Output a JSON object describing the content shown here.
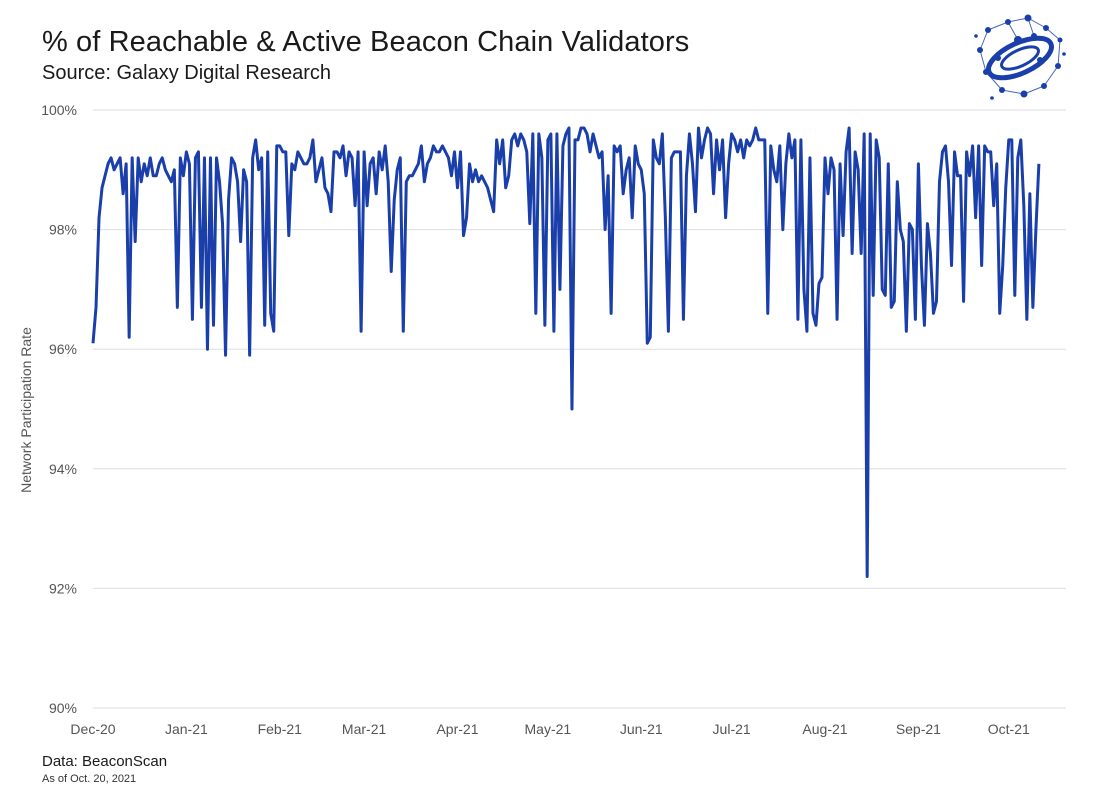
{
  "header": {
    "title": "% of Reachable & Active Beacon Chain Validators",
    "subtitle": "Source: Galaxy Digital Research"
  },
  "footer": {
    "source": "Data: BeaconScan",
    "as_of": "As of Oct. 20, 2021"
  },
  "logo": {
    "icon": "galaxy-logo-icon",
    "color": "#1a3faa"
  },
  "chart_data": {
    "type": "line",
    "title": "% of Reachable & Active Beacon Chain Validators",
    "xlabel": "",
    "ylabel": "Network Participation Rate",
    "ylim": [
      90,
      100
    ],
    "yticks": [
      90,
      92,
      94,
      96,
      98,
      100
    ],
    "ytick_labels": [
      "90%",
      "92%",
      "94%",
      "96%",
      "98%",
      "100%"
    ],
    "xlim": [
      "2020-12-01",
      "2021-10-20"
    ],
    "xticks": [
      "2020-12-01",
      "2021-01-01",
      "2021-02-01",
      "2021-03-01",
      "2021-04-01",
      "2021-05-01",
      "2021-06-01",
      "2021-07-01",
      "2021-08-01",
      "2021-09-01",
      "2021-10-01"
    ],
    "xtick_labels": [
      "Dec-20",
      "Jan-21",
      "Feb-21",
      "Mar-21",
      "Apr-21",
      "May-21",
      "Jun-21",
      "Jul-21",
      "Aug-21",
      "Sep-21",
      "Oct-21"
    ],
    "grid": true,
    "line_color": "#1a3faa",
    "series": [
      {
        "x_start": "2020-12-01",
        "x_step_days": 1,
        "values": [
          96.1,
          96.7,
          98.2,
          98.7,
          98.9,
          99.1,
          99.2,
          99.0,
          99.1,
          99.2,
          98.6,
          99.1,
          96.2,
          99.2,
          97.8,
          99.2,
          98.8,
          99.1,
          98.9,
          99.2,
          98.9,
          98.9,
          99.1,
          99.2,
          99.0,
          98.9,
          98.8,
          99.0,
          96.7,
          99.2,
          98.9,
          99.3,
          99.1,
          96.5,
          99.2,
          99.3,
          96.7,
          99.2,
          96.0,
          99.2,
          96.4,
          99.2,
          98.8,
          98.1,
          95.9,
          98.5,
          99.2,
          99.1,
          98.8,
          97.8,
          99.0,
          98.8,
          95.9,
          99.2,
          99.5,
          99.0,
          99.2,
          96.4,
          99.3,
          96.6,
          96.3,
          99.4,
          99.4,
          99.3,
          99.3,
          97.9,
          99.1,
          99.0,
          99.3,
          99.2,
          99.1,
          99.1,
          99.2,
          99.5,
          98.8,
          99.0,
          99.2,
          98.7,
          98.6,
          98.3,
          99.3,
          99.3,
          99.2,
          99.4,
          98.9,
          99.3,
          99.2,
          98.4,
          99.3,
          96.3,
          99.3,
          98.4,
          99.1,
          99.2,
          98.6,
          99.3,
          99.0,
          99.4,
          98.8,
          97.3,
          98.5,
          99.0,
          99.2,
          96.3,
          98.8,
          98.9,
          98.9,
          99.0,
          99.1,
          99.4,
          98.8,
          99.1,
          99.2,
          99.4,
          99.3,
          99.3,
          99.4,
          99.3,
          99.2,
          98.9,
          99.3,
          98.7,
          99.3,
          97.9,
          98.2,
          99.1,
          98.8,
          99.0,
          98.8,
          98.9,
          98.8,
          98.7,
          98.5,
          98.3,
          99.5,
          99.1,
          99.5,
          98.7,
          98.9,
          99.5,
          99.6,
          99.4,
          99.6,
          99.5,
          99.3,
          98.1,
          99.6,
          96.6,
          99.6,
          99.2,
          96.4,
          99.5,
          99.6,
          96.3,
          99.6,
          97.0,
          99.4,
          99.6,
          99.7,
          95.0,
          99.5,
          99.5,
          99.7,
          99.7,
          99.6,
          99.3,
          99.6,
          99.4,
          99.2,
          99.3,
          98.0,
          98.9,
          96.6,
          99.4,
          99.3,
          99.4,
          98.6,
          99.0,
          99.2,
          98.2,
          99.4,
          99.1,
          99.0,
          98.6,
          96.1,
          96.2,
          99.5,
          99.2,
          99.1,
          99.6,
          98.2,
          96.3,
          99.2,
          99.3,
          99.3,
          99.3,
          96.5,
          98.9,
          99.6,
          99.1,
          98.3,
          99.7,
          99.2,
          99.5,
          99.7,
          99.6,
          98.6,
          99.5,
          99.0,
          99.5,
          98.2,
          99.1,
          99.6,
          99.5,
          99.3,
          99.5,
          99.2,
          99.5,
          99.4,
          99.5,
          99.7,
          99.5,
          99.5,
          99.5,
          96.6,
          99.4,
          99.0,
          98.8,
          99.4,
          98.0,
          99.1,
          99.6,
          99.2,
          99.5,
          96.5,
          99.5,
          97.0,
          96.3,
          99.2,
          96.6,
          96.4,
          97.1,
          97.2,
          99.2,
          98.6,
          99.2,
          99.0,
          96.5,
          99.1,
          97.9,
          99.3,
          99.7,
          97.6,
          99.3,
          99.0,
          97.6,
          99.6,
          92.2,
          99.6,
          96.9,
          99.5,
          99.2,
          97.0,
          96.9,
          99.1,
          96.7,
          96.8,
          98.8,
          98.0,
          97.8,
          96.3,
          98.1,
          98.0,
          96.5,
          99.1,
          97.4,
          96.4,
          98.1,
          97.6,
          96.6,
          96.8,
          98.8,
          99.3,
          99.4,
          98.8,
          97.4,
          99.3,
          98.9,
          98.9,
          96.8,
          99.3,
          98.9,
          99.4,
          98.2,
          99.4,
          97.4,
          99.4,
          99.3,
          99.3,
          98.4,
          99.1,
          96.6,
          97.4,
          98.7,
          99.5,
          99.5,
          96.9,
          99.2,
          99.5,
          98.4,
          96.5,
          98.6,
          96.7,
          98.0,
          99.1
        ]
      }
    ]
  }
}
